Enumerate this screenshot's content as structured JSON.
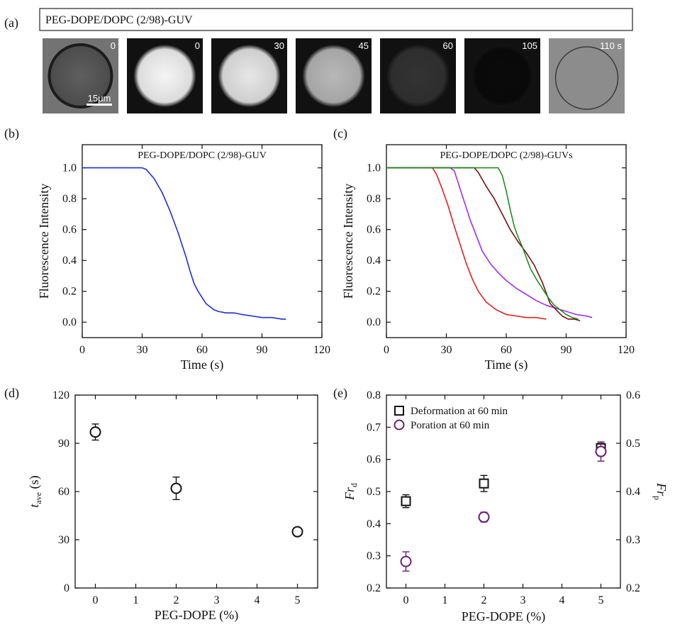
{
  "panel_a": {
    "letter": "(a)",
    "banner": "PEG-DOPE/DOPC (2/98)-GUV",
    "frames": [
      {
        "label": "0",
        "kind": "phase",
        "brightness": 0.45
      },
      {
        "label": "0",
        "kind": "fluor",
        "brightness": 0.96
      },
      {
        "label": "30",
        "kind": "fluor",
        "brightness": 0.9
      },
      {
        "label": "45",
        "kind": "fluor",
        "brightness": 0.72
      },
      {
        "label": "60",
        "kind": "fluor",
        "brightness": 0.2
      },
      {
        "label": "105",
        "kind": "fluor",
        "brightness": 0.04
      },
      {
        "label": "110 s",
        "kind": "phase",
        "brightness": 0.55
      }
    ],
    "scale_bar": "15μm"
  },
  "chart_data": [
    {
      "type": "line",
      "panel": "(b)",
      "annotation": "PEG-DOPE/DOPC (2/98)-GUV",
      "xlabel": "Time (s)",
      "ylabel": "Fluorescence Intensity",
      "xlim": [
        0,
        120
      ],
      "ylim": [
        -0.1,
        1.15
      ],
      "xticks": [
        "0",
        "30",
        "60",
        "90",
        "120"
      ],
      "yticks": [
        "0.0",
        "0.2",
        "0.4",
        "0.6",
        "0.8",
        "1.0"
      ],
      "series": [
        {
          "color": "#1f2fd6",
          "x": [
            0,
            30,
            32,
            36,
            40,
            44,
            48,
            50,
            52,
            54,
            56,
            58,
            60,
            62,
            64,
            66,
            68,
            72,
            76,
            80,
            85,
            90,
            95,
            100,
            102
          ],
          "y": [
            1.0,
            1.0,
            0.99,
            0.93,
            0.84,
            0.72,
            0.58,
            0.5,
            0.42,
            0.33,
            0.25,
            0.2,
            0.16,
            0.12,
            0.1,
            0.08,
            0.07,
            0.06,
            0.06,
            0.05,
            0.04,
            0.03,
            0.03,
            0.02,
            0.02
          ]
        }
      ]
    },
    {
      "type": "line",
      "panel": "(c)",
      "annotation": "PEG-DOPE/DOPC (2/98)-GUVs",
      "xlabel": "Time (s)",
      "ylabel": "Fluorescence Intensity",
      "xlim": [
        0,
        120
      ],
      "ylim": [
        -0.1,
        1.15
      ],
      "xticks": [
        "0",
        "30",
        "60",
        "90",
        "120"
      ],
      "yticks": [
        "0.0",
        "0.2",
        "0.4",
        "0.6",
        "0.8",
        "1.0"
      ],
      "series": [
        {
          "color": "#e02020",
          "x": [
            0,
            23,
            25,
            28,
            31,
            34,
            37,
            40,
            43,
            46,
            50,
            55,
            60,
            65,
            70,
            75,
            80
          ],
          "y": [
            1.0,
            1.0,
            0.96,
            0.86,
            0.75,
            0.62,
            0.5,
            0.38,
            0.28,
            0.2,
            0.13,
            0.08,
            0.05,
            0.04,
            0.03,
            0.03,
            0.02
          ]
        },
        {
          "color": "#9b30f0",
          "x": [
            0,
            32,
            34,
            36,
            38,
            40,
            42,
            45,
            48,
            52,
            56,
            60,
            65,
            70,
            75,
            80,
            85,
            90,
            95,
            100,
            103
          ],
          "y": [
            1.0,
            1.0,
            0.98,
            0.9,
            0.82,
            0.74,
            0.66,
            0.56,
            0.46,
            0.38,
            0.32,
            0.27,
            0.22,
            0.18,
            0.14,
            0.11,
            0.09,
            0.07,
            0.05,
            0.04,
            0.03
          ]
        },
        {
          "color": "#7a1010",
          "x": [
            0,
            44,
            46,
            50,
            54,
            58,
            62,
            66,
            70,
            74,
            78,
            82,
            85,
            88,
            91,
            94,
            97
          ],
          "y": [
            1.0,
            1.0,
            0.97,
            0.88,
            0.8,
            0.7,
            0.6,
            0.52,
            0.45,
            0.37,
            0.26,
            0.12,
            0.08,
            0.04,
            0.02,
            0.02,
            0.01
          ]
        },
        {
          "color": "#1f8c1f",
          "x": [
            0,
            56,
            58,
            60,
            62,
            64,
            66,
            68,
            70,
            72,
            75,
            78,
            81,
            84,
            87,
            90,
            93,
            96
          ],
          "y": [
            1.0,
            1.0,
            0.95,
            0.85,
            0.73,
            0.62,
            0.55,
            0.49,
            0.42,
            0.35,
            0.28,
            0.22,
            0.16,
            0.11,
            0.08,
            0.05,
            0.03,
            0.02
          ]
        }
      ]
    },
    {
      "type": "scatter",
      "panel": "(d)",
      "xlabel": "PEG-DOPE (%)",
      "ylabel_main": "t",
      "ylabel_sub": "ave",
      "ylabel_unit": " (s)",
      "xlim": [
        -0.5,
        5.5
      ],
      "ylim": [
        0,
        120
      ],
      "xticks": [
        "0",
        "1",
        "2",
        "3",
        "4",
        "5"
      ],
      "yticks": [
        "0",
        "30",
        "60",
        "90",
        "120"
      ],
      "series": [
        {
          "color": "#111111",
          "marker": "circle",
          "x": [
            0,
            2,
            5
          ],
          "y": [
            97,
            62,
            35
          ],
          "err": [
            5,
            7,
            2
          ]
        }
      ]
    },
    {
      "type": "scatter",
      "panel": "(e)",
      "xlabel": "PEG-DOPE (%)",
      "ylabel_left": "Fr",
      "ylabel_left_sub": "d",
      "ylabel_right": "Fr",
      "ylabel_right_sub": "p",
      "xlim": [
        -0.5,
        5.5
      ],
      "ylim_left": [
        0.2,
        0.8
      ],
      "ylim_right": [
        0.2,
        0.6
      ],
      "xticks": [
        "0",
        "1",
        "2",
        "3",
        "4",
        "5"
      ],
      "yticks_left": [
        "0.2",
        "0.3",
        "0.4",
        "0.5",
        "0.6",
        "0.7",
        "0.8"
      ],
      "yticks_right": [
        "0.2",
        "0.3",
        "0.4",
        "0.5",
        "0.6"
      ],
      "series": [
        {
          "name": "Deformation at 60 min",
          "color": "#111111",
          "marker": "square",
          "axis": "left",
          "x": [
            0,
            2,
            5
          ],
          "y": [
            0.47,
            0.525,
            0.635
          ],
          "err": [
            0.02,
            0.025,
            0.015
          ]
        },
        {
          "name": "Poration at 60 min",
          "color": "#6a1f6e",
          "marker": "circle",
          "axis": "right",
          "x": [
            0,
            2,
            5
          ],
          "y": [
            0.255,
            0.347,
            0.483
          ],
          "err": [
            0.02,
            0.01,
            0.02
          ]
        }
      ],
      "legend_position": "top-left"
    }
  ]
}
